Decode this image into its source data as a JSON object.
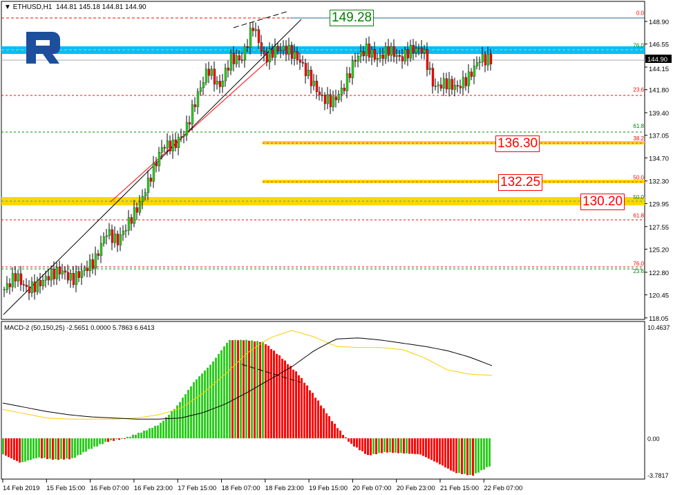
{
  "header": {
    "symbol": "ETHUSD,H1",
    "ohlc": "144.81 145.18 144.81 144.90"
  },
  "macd_header": "MACD-2 (50,150,25) -2.5651 0.0000 5.7863 6.6413",
  "colors": {
    "bull": "#2ecc20",
    "bear": "#ff0000",
    "band_blue": "#00bfff",
    "band_gold": "#ffd700",
    "signal": "#000000",
    "macd_line": "#ffcc00"
  },
  "price_boxes": [
    {
      "value": "149.28",
      "color": "#008000"
    },
    {
      "value": "136.30",
      "color": "#ff0000"
    },
    {
      "value": "132.25",
      "color": "#ff0000"
    },
    {
      "value": "130.20",
      "color": "#ff0000"
    }
  ],
  "fib_labels": [
    {
      "text": "0.0",
      "price": 149.28,
      "color": "#ff0000"
    },
    {
      "text": "76.0",
      "price": 146.0,
      "color": "#008000"
    },
    {
      "text": "23.6",
      "price": 141.4,
      "color": "#ff0000"
    },
    {
      "text": "61.8",
      "price": 137.6,
      "color": "#008000"
    },
    {
      "text": "38.2",
      "price": 136.3,
      "color": "#ff0000"
    },
    {
      "text": "50.0",
      "price": 132.25,
      "color": "#ff0000"
    },
    {
      "text": "50.0",
      "price": 130.2,
      "color": "#008000"
    },
    {
      "text": "61.8",
      "price": 128.3,
      "color": "#ff0000"
    },
    {
      "text": "76.0",
      "price": 123.3,
      "color": "#ff0000"
    },
    {
      "text": "23.6",
      "price": 123.2,
      "color": "#008000"
    }
  ],
  "current_price": "144.90",
  "chart_data": [
    {
      "type": "candlestick",
      "title": "ETHUSD,H1",
      "ylim": [
        118.05,
        150.5
      ],
      "y_ticks": [
        "148.90",
        "146.55",
        "144.15",
        "141.80",
        "139.40",
        "137.05",
        "134.70",
        "132.30",
        "129.95",
        "127.55",
        "125.20",
        "122.80",
        "120.45",
        "118.05"
      ],
      "x_ticks": [
        "14 Feb 2019",
        "15 Feb 15:00",
        "16 Feb 07:00",
        "16 Feb 23:00",
        "17 Feb 15:00",
        "18 Feb 07:00",
        "18 Feb 23:00",
        "19 Feb 15:00",
        "20 Feb 07:00",
        "20 Feb 23:00",
        "21 Feb 15:00",
        "22 Feb 07:00"
      ],
      "close_path": [
        121,
        122.5,
        121,
        121.5,
        122.5,
        123,
        122,
        123,
        124,
        127,
        126,
        128,
        130,
        133,
        136,
        136,
        137.5,
        141,
        144,
        142,
        145,
        145,
        148.5,
        145,
        146,
        146,
        145,
        143,
        141,
        140.5,
        142,
        145,
        146,
        145,
        146,
        145,
        146,
        146,
        142,
        142.5,
        142,
        143,
        145,
        144.9
      ]
    },
    {
      "type": "macd",
      "ylim": [
        -3.7817,
        10.4637
      ],
      "y_ticks": [
        "10.4637",
        "0.00",
        "-3.7817"
      ],
      "histogram_path": [
        -1.5,
        -2.3,
        -1.8,
        -2.0,
        -1.9,
        -1.0,
        -0.3,
        0,
        0.6,
        1.3,
        3,
        5.3,
        7,
        9.2,
        9.2,
        9,
        7.6,
        6,
        3.8,
        1.5,
        -0.5,
        -1.6,
        -1.3,
        -1.4,
        -1.5,
        -2.3,
        -3.2,
        -3.5,
        -2.6
      ],
      "signal_path": [
        3.3,
        2.9,
        2.5,
        2.2,
        2.0,
        1.9,
        1.8,
        1.8,
        1.9,
        2.4,
        3.2,
        4.3,
        5.5,
        6.7,
        8.2,
        9.3,
        9.4,
        9.2,
        8.9,
        8.6,
        8.2,
        7.6,
        6.8
      ],
      "macd_path": [
        2.7,
        2.3,
        1.9,
        1.8,
        1.8,
        1.8,
        1.9,
        2.2,
        2.8,
        4.2,
        6,
        8,
        9.4,
        10.1,
        9.5,
        8.6,
        8.5,
        8.5,
        8.3,
        7.5,
        6.4,
        6.0,
        5.9
      ]
    }
  ]
}
